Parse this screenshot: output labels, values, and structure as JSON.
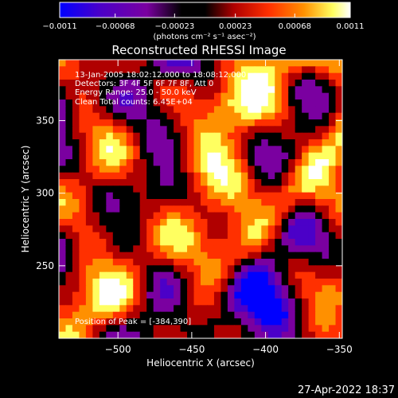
{
  "chart_data": {
    "type": "heatmap",
    "title": "Reconstructed RHESSI Image",
    "xlabel": "Heliocentric X (arcsec)",
    "ylabel": "Heliocentric Y (arcsec)",
    "xlim": [
      -540,
      -348
    ],
    "ylim": [
      200,
      392
    ],
    "xticks": [
      {
        "value": -500,
        "label": "−500"
      },
      {
        "value": -450,
        "label": "−450"
      },
      {
        "value": -400,
        "label": "−400"
      },
      {
        "value": -350,
        "label": "−350"
      }
    ],
    "yticks": [
      {
        "value": 250,
        "label": "250"
      },
      {
        "value": 300,
        "label": "300"
      },
      {
        "value": 350,
        "label": "350"
      }
    ],
    "colorbar": {
      "range": [
        -0.0011,
        0.0011
      ],
      "ticks": [
        {
          "value": -0.0011,
          "label": "−0.0011"
        },
        {
          "value": -0.00068,
          "label": "−0.00068"
        },
        {
          "value": -0.00023,
          "label": "−0.00023"
        },
        {
          "value": 0.00023,
          "label": "0.00023"
        },
        {
          "value": 0.00068,
          "label": "0.00068"
        },
        {
          "value": 0.0011,
          "label": "0.0011"
        }
      ],
      "units": "(photons cm⁻² s⁻¹ asec⁻²)",
      "colormap": [
        "#0000ff",
        "#4b00c8",
        "#7a00a0",
        "#000000",
        "#b00000",
        "#ff3000",
        "#ff9000",
        "#ffff60",
        "#ffffff"
      ]
    },
    "annotations": [
      "13-Jan-2005 18:02:12.000 to 18:08:12.000",
      "Detectors: 3F 4F 5F 6F 7F 8F, Att 0",
      "Energy Range: 25.0 - 50.0 keV",
      "Clean     Total counts: 6.45E+04"
    ],
    "peak_label": "Position of Peak = [-384,390]",
    "peak_position": [
      -384,
      390
    ],
    "grid": false
  },
  "footer": {
    "timestamp": "27-Apr-2022 18:37"
  }
}
